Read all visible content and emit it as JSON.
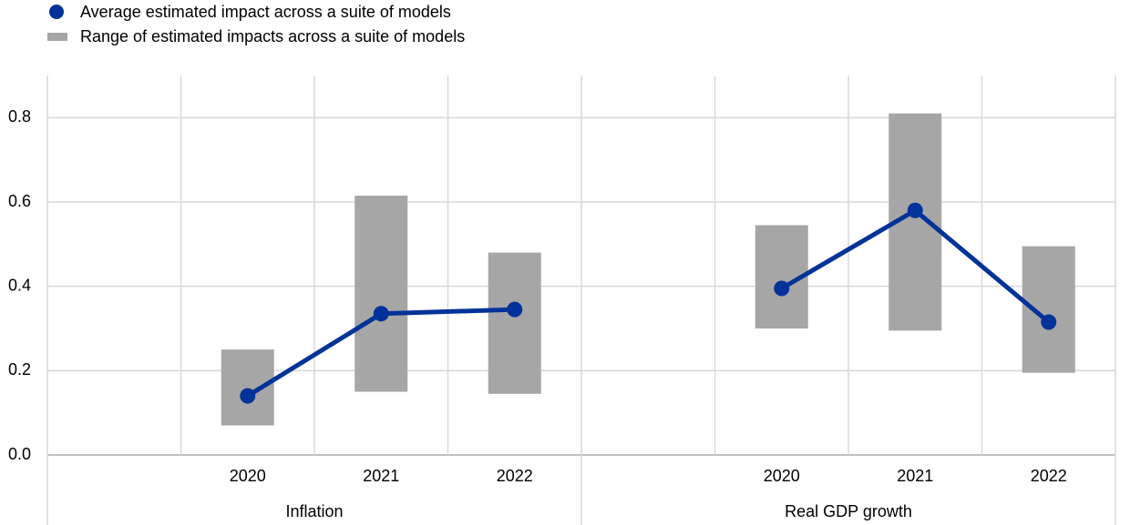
{
  "chart_data": {
    "type": "line",
    "categories": [
      null,
      "2020",
      "2021",
      "2022",
      null,
      "2020",
      "2021",
      "2022"
    ],
    "groups": [
      {
        "name": "Inflation",
        "span": [
          0,
          3
        ]
      },
      {
        "name": "Real GDP growth",
        "span": [
          4,
          7
        ]
      }
    ],
    "series": [
      {
        "name": "Average estimated impact across a suite of models",
        "color": "#003299",
        "values": [
          null,
          0.14,
          0.335,
          0.345,
          null,
          0.395,
          0.58,
          0.315
        ]
      }
    ],
    "ranges": {
      "name": "Range of estimated impacts across a suite of models",
      "color": "#a6a6a6",
      "low": [
        null,
        0.07,
        0.15,
        0.145,
        null,
        0.3,
        0.295,
        0.195
      ],
      "high": [
        null,
        0.25,
        0.615,
        0.48,
        null,
        0.545,
        0.81,
        0.495
      ]
    },
    "ylim": [
      0,
      0.9
    ],
    "yticks": [
      {
        "value": 0,
        "label": "0.0"
      },
      0.2,
      0.4,
      0.6,
      0.8
    ],
    "grid": true
  }
}
